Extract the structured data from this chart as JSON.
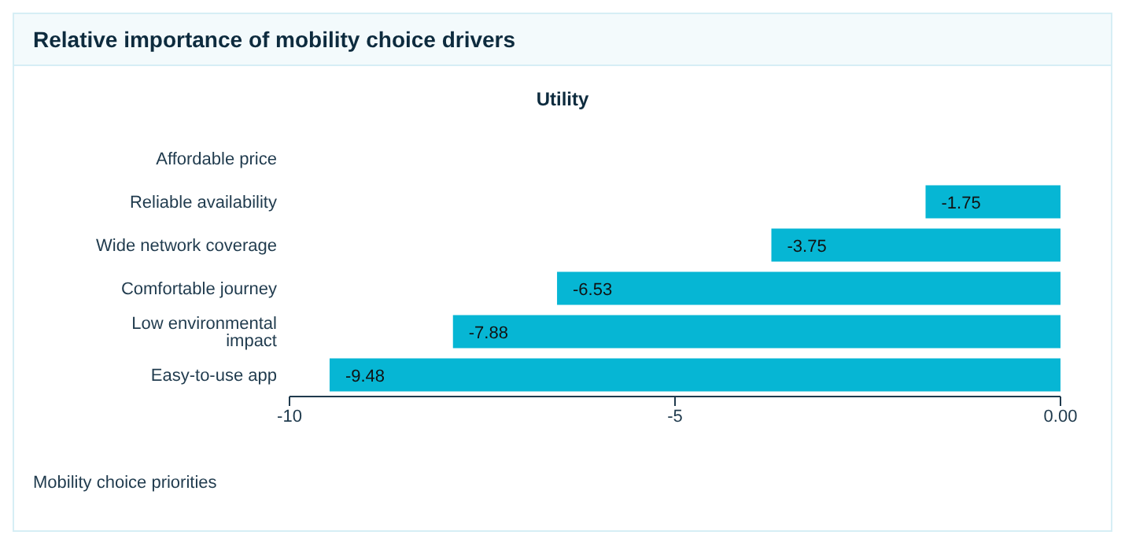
{
  "chart_data": {
    "type": "bar",
    "orientation": "horizontal",
    "title": "Relative importance of mobility choice drivers",
    "subtitle": "Utility",
    "categories": [
      "Affordable price",
      "Reliable availability",
      "Wide network coverage",
      "Comfortable journey",
      "Low environmental impact",
      "Easy-to-use app"
    ],
    "values": [
      0,
      -1.75,
      -3.75,
      -6.53,
      -7.88,
      -9.48
    ],
    "value_labels": [
      null,
      "-1.75",
      "-3.75",
      "-6.53",
      "-7.88",
      "-9.48"
    ],
    "color": "#06b6d4",
    "xlim": [
      -10,
      0
    ],
    "xticks": [
      -10,
      -5,
      {
        "value": 0,
        "label": "0.00"
      }
    ],
    "annotations": [
      "Mobility choice priorities"
    ]
  }
}
